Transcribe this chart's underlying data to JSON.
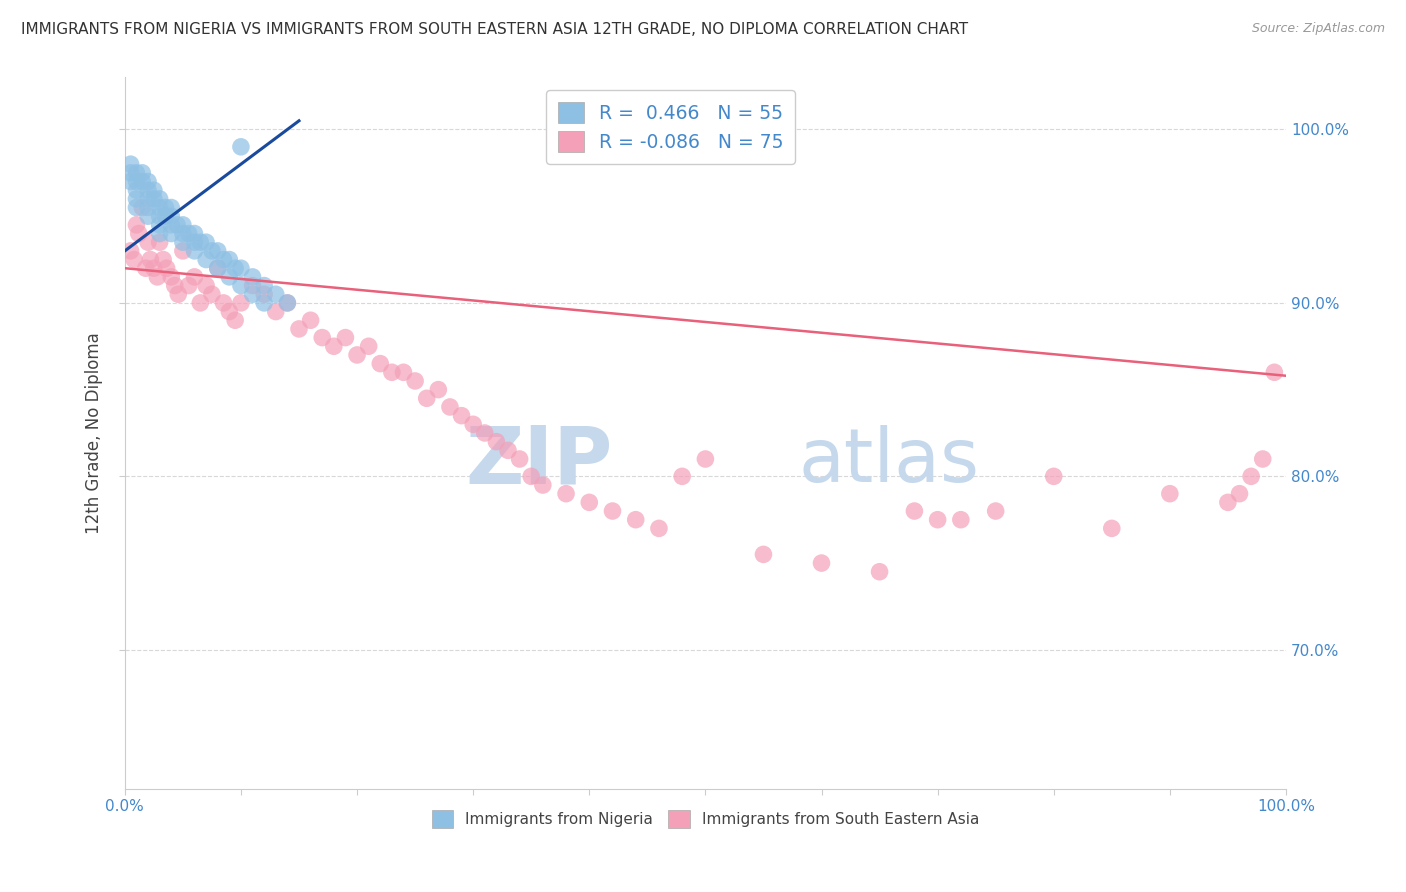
{
  "title": "IMMIGRANTS FROM NIGERIA VS IMMIGRANTS FROM SOUTH EASTERN ASIA 12TH GRADE, NO DIPLOMA CORRELATION CHART",
  "source": "Source: ZipAtlas.com",
  "ylabel": "12th Grade, No Diploma",
  "ytick_labels": [
    "100.0%",
    "90.0%",
    "80.0%",
    "70.0%"
  ],
  "ytick_positions": [
    1.0,
    0.9,
    0.8,
    0.7
  ],
  "xlim": [
    0.0,
    1.0
  ],
  "ylim": [
    0.62,
    1.03
  ],
  "legend_r1": "R =  0.466",
  "legend_n1": "N = 55",
  "legend_r2": "R = -0.086",
  "legend_n2": "N = 75",
  "color_nigeria": "#8ec0e4",
  "color_sea": "#f4a0b8",
  "color_nigeria_line": "#1a4a9e",
  "color_sea_line": "#e8607a",
  "nigeria_x": [
    0.01,
    0.01,
    0.01,
    0.01,
    0.01,
    0.02,
    0.02,
    0.02,
    0.02,
    0.02,
    0.03,
    0.03,
    0.03,
    0.03,
    0.03,
    0.04,
    0.04,
    0.04,
    0.04,
    0.05,
    0.05,
    0.05,
    0.06,
    0.06,
    0.06,
    0.07,
    0.07,
    0.08,
    0.08,
    0.09,
    0.09,
    0.1,
    0.1,
    0.11,
    0.11,
    0.12,
    0.12,
    0.13,
    0.14,
    0.005,
    0.005,
    0.005,
    0.015,
    0.015,
    0.025,
    0.025,
    0.035,
    0.035,
    0.045,
    0.055,
    0.065,
    0.075,
    0.085,
    0.095,
    0.1
  ],
  "nigeria_y": [
    0.975,
    0.97,
    0.965,
    0.96,
    0.955,
    0.97,
    0.965,
    0.96,
    0.955,
    0.95,
    0.96,
    0.955,
    0.95,
    0.945,
    0.94,
    0.955,
    0.95,
    0.945,
    0.94,
    0.945,
    0.94,
    0.935,
    0.94,
    0.935,
    0.93,
    0.935,
    0.925,
    0.93,
    0.92,
    0.925,
    0.915,
    0.92,
    0.91,
    0.915,
    0.905,
    0.91,
    0.9,
    0.905,
    0.9,
    0.98,
    0.975,
    0.97,
    0.975,
    0.97,
    0.965,
    0.96,
    0.955,
    0.95,
    0.945,
    0.94,
    0.935,
    0.93,
    0.925,
    0.92,
    0.99
  ],
  "sea_x": [
    0.005,
    0.008,
    0.01,
    0.012,
    0.015,
    0.018,
    0.02,
    0.022,
    0.025,
    0.028,
    0.03,
    0.033,
    0.036,
    0.04,
    0.043,
    0.046,
    0.05,
    0.055,
    0.06,
    0.065,
    0.07,
    0.075,
    0.08,
    0.085,
    0.09,
    0.095,
    0.1,
    0.11,
    0.12,
    0.13,
    0.14,
    0.15,
    0.16,
    0.17,
    0.18,
    0.19,
    0.2,
    0.21,
    0.22,
    0.23,
    0.24,
    0.25,
    0.26,
    0.27,
    0.28,
    0.29,
    0.3,
    0.31,
    0.32,
    0.33,
    0.34,
    0.35,
    0.36,
    0.38,
    0.4,
    0.42,
    0.44,
    0.46,
    0.48,
    0.5,
    0.55,
    0.6,
    0.65,
    0.68,
    0.7,
    0.72,
    0.75,
    0.8,
    0.85,
    0.9,
    0.95,
    0.96,
    0.97,
    0.98,
    0.99
  ],
  "sea_y": [
    0.93,
    0.925,
    0.945,
    0.94,
    0.955,
    0.92,
    0.935,
    0.925,
    0.92,
    0.915,
    0.935,
    0.925,
    0.92,
    0.915,
    0.91,
    0.905,
    0.93,
    0.91,
    0.915,
    0.9,
    0.91,
    0.905,
    0.92,
    0.9,
    0.895,
    0.89,
    0.9,
    0.91,
    0.905,
    0.895,
    0.9,
    0.885,
    0.89,
    0.88,
    0.875,
    0.88,
    0.87,
    0.875,
    0.865,
    0.86,
    0.86,
    0.855,
    0.845,
    0.85,
    0.84,
    0.835,
    0.83,
    0.825,
    0.82,
    0.815,
    0.81,
    0.8,
    0.795,
    0.79,
    0.785,
    0.78,
    0.775,
    0.77,
    0.8,
    0.81,
    0.755,
    0.75,
    0.745,
    0.78,
    0.775,
    0.775,
    0.78,
    0.8,
    0.77,
    0.79,
    0.785,
    0.79,
    0.8,
    0.81,
    0.86
  ],
  "nigeria_line_x": [
    0.0,
    0.15
  ],
  "nigeria_line_y": [
    0.93,
    1.005
  ],
  "sea_line_x": [
    0.0,
    1.0
  ],
  "sea_line_y": [
    0.92,
    0.858
  ],
  "background_color": "#ffffff",
  "grid_color": "#d8d8d8",
  "title_color": "#333333",
  "axis_label_color": "#444444",
  "right_tick_color": "#4488cc",
  "watermark_zip": "ZIP",
  "watermark_atlas": "atlas",
  "watermark_color_zip": "#c5d8ec",
  "watermark_color_atlas": "#c5d8ec",
  "watermark_fontsize": 58
}
